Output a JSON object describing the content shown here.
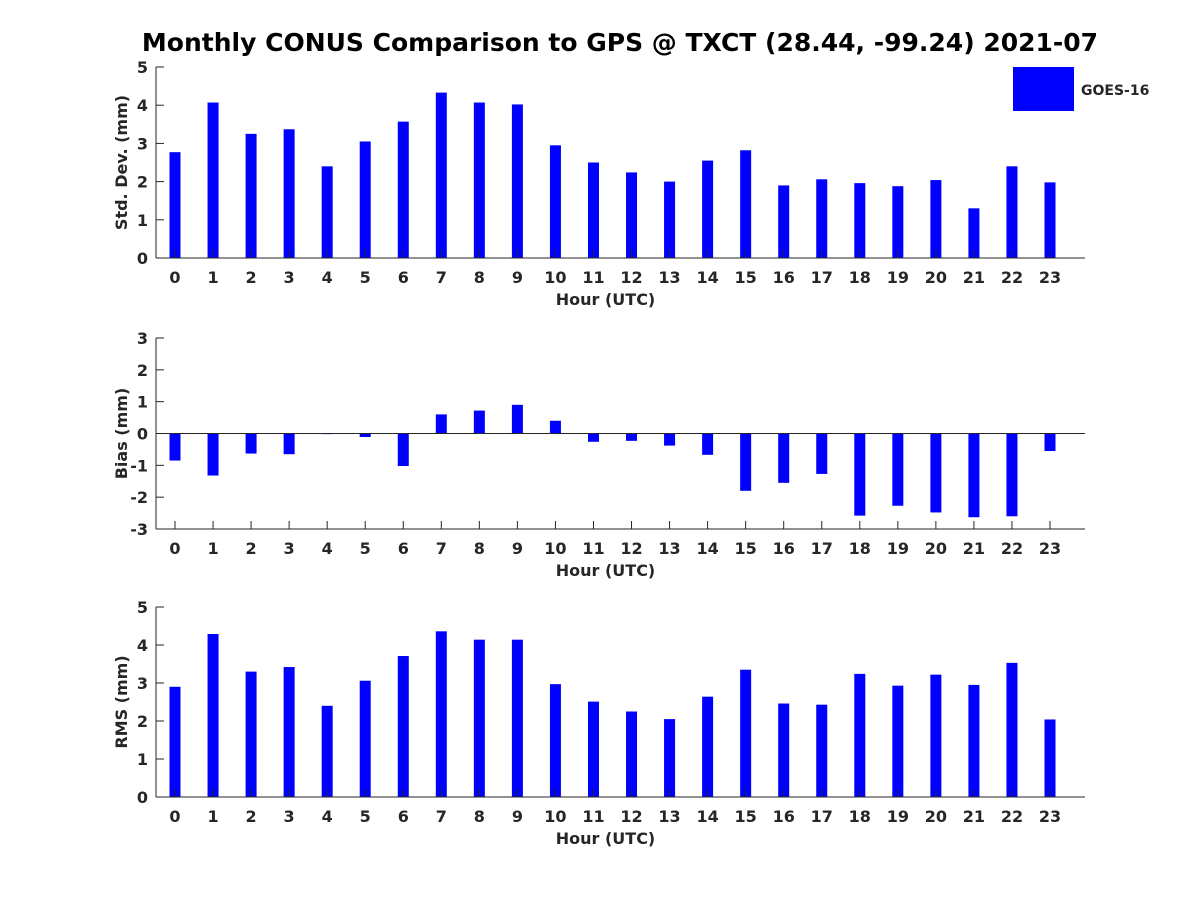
{
  "title": "Monthly CONUS Comparison to GPS @ TXCT (28.44, -99.24) 2021-07",
  "colors": {
    "bar": "#0000ff",
    "axis": "#262626"
  },
  "chart_data": [
    {
      "type": "bar",
      "xlabel": "Hour (UTC)",
      "ylabel": "Std. Dev. (mm)",
      "ylim": [
        0,
        5
      ],
      "yticks": [
        0,
        1,
        2,
        3,
        4,
        5
      ],
      "categories": [
        "0",
        "1",
        "2",
        "3",
        "4",
        "5",
        "6",
        "7",
        "8",
        "9",
        "10",
        "11",
        "12",
        "13",
        "14",
        "15",
        "16",
        "17",
        "18",
        "19",
        "20",
        "21",
        "22",
        "23"
      ],
      "series": [
        {
          "name": "GOES-16",
          "values": [
            2.77,
            4.07,
            3.25,
            3.37,
            2.4,
            3.05,
            3.57,
            4.33,
            4.07,
            4.02,
            2.95,
            2.5,
            2.24,
            2.0,
            2.55,
            2.82,
            1.9,
            2.06,
            1.96,
            1.88,
            2.04,
            1.3,
            2.4,
            1.98
          ]
        }
      ],
      "legend": {
        "position": "top-right",
        "label": "GOES-16"
      }
    },
    {
      "type": "bar",
      "xlabel": "Hour (UTC)",
      "ylabel": "Bias (mm)",
      "ylim": [
        -3,
        3
      ],
      "yticks": [
        -3,
        -2,
        -1,
        0,
        1,
        2,
        3
      ],
      "categories": [
        "0",
        "1",
        "2",
        "3",
        "4",
        "5",
        "6",
        "7",
        "8",
        "9",
        "10",
        "11",
        "12",
        "13",
        "14",
        "15",
        "16",
        "17",
        "18",
        "19",
        "20",
        "21",
        "22",
        "23"
      ],
      "series": [
        {
          "name": "GOES-16",
          "values": [
            -0.85,
            -1.32,
            -0.63,
            -0.65,
            -0.02,
            -0.11,
            -1.02,
            0.6,
            0.72,
            0.9,
            0.4,
            -0.26,
            -0.23,
            -0.38,
            -0.67,
            -1.8,
            -1.55,
            -1.27,
            -2.58,
            -2.27,
            -2.48,
            -2.63,
            -2.6,
            -0.55
          ]
        }
      ]
    },
    {
      "type": "bar",
      "xlabel": "Hour (UTC)",
      "ylabel": "RMS (mm)",
      "ylim": [
        0,
        5
      ],
      "yticks": [
        0,
        1,
        2,
        3,
        4,
        5
      ],
      "categories": [
        "0",
        "1",
        "2",
        "3",
        "4",
        "5",
        "6",
        "7",
        "8",
        "9",
        "10",
        "11",
        "12",
        "13",
        "14",
        "15",
        "16",
        "17",
        "18",
        "19",
        "20",
        "21",
        "22",
        "23"
      ],
      "series": [
        {
          "name": "GOES-16",
          "values": [
            2.9,
            4.29,
            3.3,
            3.42,
            2.4,
            3.06,
            3.71,
            4.36,
            4.14,
            4.14,
            2.97,
            2.51,
            2.25,
            2.05,
            2.64,
            3.35,
            2.46,
            2.43,
            3.24,
            2.93,
            3.22,
            2.95,
            3.53,
            2.04
          ]
        }
      ]
    }
  ]
}
